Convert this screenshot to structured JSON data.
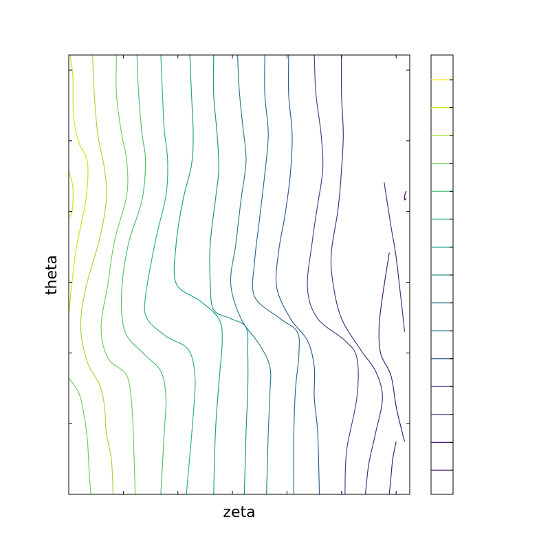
{
  "chart_data": {
    "type": "contour",
    "title": "",
    "xlabel": "zeta",
    "ylabel": "theta",
    "grid": false,
    "legend": "none",
    "colormap": "viridis",
    "tick_labels_shown": false,
    "x_ticks": 6,
    "y_ticks": 6,
    "colorbar": {
      "placement": "right",
      "levels": 17,
      "level_colors": [
        "#440154",
        "#481b6d",
        "#46327e",
        "#3f4788",
        "#365c8d",
        "#2e6e8e",
        "#277f8e",
        "#21918c",
        "#1fa187",
        "#2db27d",
        "#4ac16d",
        "#71cf57",
        "#a0da39",
        "#d0e11c",
        "#fde725",
        "#fde725",
        "#fde725"
      ]
    },
    "contours": [
      {
        "color": "#d0e11c",
        "pts": [
          [
            0.004,
            0.0
          ],
          [
            0.012,
            0.05
          ],
          [
            0.014,
            0.14
          ],
          [
            0.03,
            0.2
          ],
          [
            0.055,
            0.245
          ],
          [
            0.05,
            0.33
          ],
          [
            0.02,
            0.45
          ],
          [
            0.0,
            0.59
          ]
        ]
      },
      {
        "color": "#d0e11c",
        "pts": [
          [
            0.0,
            0.265
          ],
          [
            0.012,
            0.3
          ],
          [
            0.01,
            0.355
          ],
          [
            0.0,
            0.37
          ]
        ]
      },
      {
        "color": "#a0da39",
        "pts": [
          [
            0.07,
            0.0
          ],
          [
            0.075,
            0.09
          ],
          [
            0.085,
            0.18
          ],
          [
            0.105,
            0.26
          ],
          [
            0.11,
            0.33
          ],
          [
            0.09,
            0.42
          ],
          [
            0.05,
            0.53
          ],
          [
            0.035,
            0.62
          ],
          [
            0.055,
            0.7
          ],
          [
            0.09,
            0.75
          ],
          [
            0.105,
            0.8
          ],
          [
            0.11,
            0.86
          ],
          [
            0.125,
            0.92
          ],
          [
            0.13,
            1.0
          ]
        ]
      },
      {
        "color": "#71cf57",
        "pts": [
          [
            0.14,
            0.0
          ],
          [
            0.14,
            0.09
          ],
          [
            0.155,
            0.18
          ],
          [
            0.17,
            0.24
          ],
          [
            0.17,
            0.32
          ],
          [
            0.135,
            0.42
          ],
          [
            0.115,
            0.52
          ],
          [
            0.095,
            0.62
          ],
          [
            0.115,
            0.69
          ],
          [
            0.17,
            0.73
          ],
          [
            0.185,
            0.8
          ],
          [
            0.19,
            0.88
          ],
          [
            0.195,
            1.0
          ]
        ]
      },
      {
        "color": "#71cf57",
        "pts": [
          [
            0.0,
            0.735
          ],
          [
            0.03,
            0.77
          ],
          [
            0.045,
            0.82
          ],
          [
            0.055,
            0.88
          ],
          [
            0.06,
            0.95
          ],
          [
            0.065,
            1.0
          ]
        ]
      },
      {
        "color": "#4ac16d",
        "pts": [
          [
            0.2,
            0.0
          ],
          [
            0.205,
            0.09
          ],
          [
            0.215,
            0.18
          ],
          [
            0.225,
            0.24
          ],
          [
            0.215,
            0.33
          ],
          [
            0.175,
            0.43
          ],
          [
            0.155,
            0.54
          ],
          [
            0.165,
            0.63
          ],
          [
            0.22,
            0.68
          ],
          [
            0.27,
            0.72
          ],
          [
            0.285,
            0.78
          ],
          [
            0.28,
            0.86
          ],
          [
            0.27,
            1.0
          ]
        ]
      },
      {
        "color": "#2db27d",
        "pts": [
          [
            0.27,
            0.0
          ],
          [
            0.275,
            0.09
          ],
          [
            0.28,
            0.17
          ],
          [
            0.29,
            0.24
          ],
          [
            0.285,
            0.32
          ],
          [
            0.255,
            0.42
          ],
          [
            0.225,
            0.55
          ],
          [
            0.23,
            0.6
          ],
          [
            0.285,
            0.64
          ],
          [
            0.35,
            0.67
          ],
          [
            0.37,
            0.73
          ],
          [
            0.365,
            0.82
          ],
          [
            0.345,
            1.0
          ]
        ]
      },
      {
        "color": "#1fa187",
        "pts": [
          [
            0.355,
            0.0
          ],
          [
            0.36,
            0.09
          ],
          [
            0.365,
            0.18
          ],
          [
            0.36,
            0.25
          ],
          [
            0.335,
            0.33
          ],
          [
            0.315,
            0.43
          ],
          [
            0.315,
            0.52
          ],
          [
            0.385,
            0.56
          ],
          [
            0.44,
            0.6
          ],
          [
            0.45,
            0.65
          ],
          [
            0.44,
            0.75
          ],
          [
            0.43,
            0.86
          ],
          [
            0.425,
            1.0
          ]
        ]
      },
      {
        "color": "#21918c",
        "pts": [
          [
            0.425,
            0.0
          ],
          [
            0.425,
            0.09
          ],
          [
            0.435,
            0.18
          ],
          [
            0.44,
            0.26
          ],
          [
            0.43,
            0.33
          ],
          [
            0.415,
            0.43
          ],
          [
            0.415,
            0.52
          ],
          [
            0.425,
            0.58
          ],
          [
            0.475,
            0.6
          ],
          [
            0.52,
            0.62
          ],
          [
            0.525,
            0.68
          ],
          [
            0.525,
            0.76
          ],
          [
            0.52,
            0.86
          ],
          [
            0.515,
            1.0
          ]
        ]
      },
      {
        "color": "#277f8e",
        "pts": [
          [
            0.495,
            0.0
          ],
          [
            0.5,
            0.08
          ],
          [
            0.51,
            0.16
          ],
          [
            0.52,
            0.24
          ],
          [
            0.505,
            0.33
          ],
          [
            0.49,
            0.43
          ],
          [
            0.475,
            0.52
          ],
          [
            0.505,
            0.6
          ],
          [
            0.56,
            0.66
          ],
          [
            0.59,
            0.71
          ],
          [
            0.59,
            0.77
          ],
          [
            0.585,
            0.86
          ],
          [
            0.58,
            1.0
          ]
        ]
      },
      {
        "color": "#2e6e8e",
        "pts": [
          [
            0.575,
            0.0
          ],
          [
            0.575,
            0.09
          ],
          [
            0.585,
            0.18
          ],
          [
            0.575,
            0.27
          ],
          [
            0.56,
            0.37
          ],
          [
            0.545,
            0.47
          ],
          [
            0.545,
            0.55
          ],
          [
            0.62,
            0.6
          ],
          [
            0.67,
            0.63
          ],
          [
            0.675,
            0.68
          ],
          [
            0.665,
            0.76
          ],
          [
            0.66,
            0.86
          ],
          [
            0.66,
            1.0
          ]
        ]
      },
      {
        "color": "#365c8d",
        "pts": [
          [
            0.645,
            0.0
          ],
          [
            0.645,
            0.09
          ],
          [
            0.655,
            0.18
          ],
          [
            0.65,
            0.27
          ],
          [
            0.635,
            0.36
          ],
          [
            0.615,
            0.45
          ],
          [
            0.61,
            0.53
          ],
          [
            0.65,
            0.6
          ],
          [
            0.7,
            0.65
          ],
          [
            0.72,
            0.71
          ],
          [
            0.72,
            0.78
          ],
          [
            0.73,
            0.86
          ],
          [
            0.735,
            1.0
          ]
        ]
      },
      {
        "color": "#3f4788",
        "pts": [
          [
            0.72,
            0.0
          ],
          [
            0.725,
            0.09
          ],
          [
            0.74,
            0.18
          ],
          [
            0.745,
            0.26
          ],
          [
            0.73,
            0.34
          ],
          [
            0.715,
            0.42
          ],
          [
            0.7,
            0.53
          ],
          [
            0.73,
            0.6
          ],
          [
            0.81,
            0.65
          ],
          [
            0.845,
            0.69
          ],
          [
            0.845,
            0.78
          ],
          [
            0.815,
            0.9
          ],
          [
            0.81,
            1.0
          ]
        ]
      },
      {
        "color": "#46327e",
        "pts": [
          [
            0.8,
            0.0
          ],
          [
            0.8,
            0.09
          ],
          [
            0.805,
            0.18
          ],
          [
            0.8,
            0.26
          ],
          [
            0.79,
            0.35
          ],
          [
            0.77,
            0.45
          ],
          [
            0.775,
            0.52
          ],
          [
            0.8,
            0.6
          ],
          [
            0.855,
            0.67
          ],
          [
            0.9,
            0.72
          ],
          [
            0.92,
            0.78
          ],
          [
            0.9,
            0.86
          ],
          [
            0.88,
            0.93
          ],
          [
            0.87,
            1.0
          ]
        ]
      },
      {
        "color": "#46327e",
        "pts": [
          [
            0.925,
            0.29
          ],
          [
            0.945,
            0.39
          ],
          [
            0.96,
            0.46
          ],
          [
            0.975,
            0.56
          ],
          [
            0.985,
            0.63
          ]
        ]
      },
      {
        "color": "#481b6d",
        "pts": [
          [
            0.94,
            0.45
          ],
          [
            0.92,
            0.55
          ],
          [
            0.91,
            0.62
          ],
          [
            0.915,
            0.68
          ],
          [
            0.945,
            0.73
          ],
          [
            0.96,
            0.8
          ],
          [
            0.975,
            0.85
          ],
          [
            0.985,
            0.88
          ]
        ]
      },
      {
        "color": "#440154",
        "pts": [
          [
            0.99,
            0.31
          ],
          [
            0.985,
            0.32
          ],
          [
            0.985,
            0.33
          ],
          [
            0.99,
            0.325
          ]
        ]
      },
      {
        "color": "#481b6d",
        "pts": [
          [
            0.94,
            1.0
          ],
          [
            0.945,
            0.96
          ],
          [
            0.95,
            0.92
          ],
          [
            0.96,
            0.88
          ]
        ]
      }
    ]
  }
}
